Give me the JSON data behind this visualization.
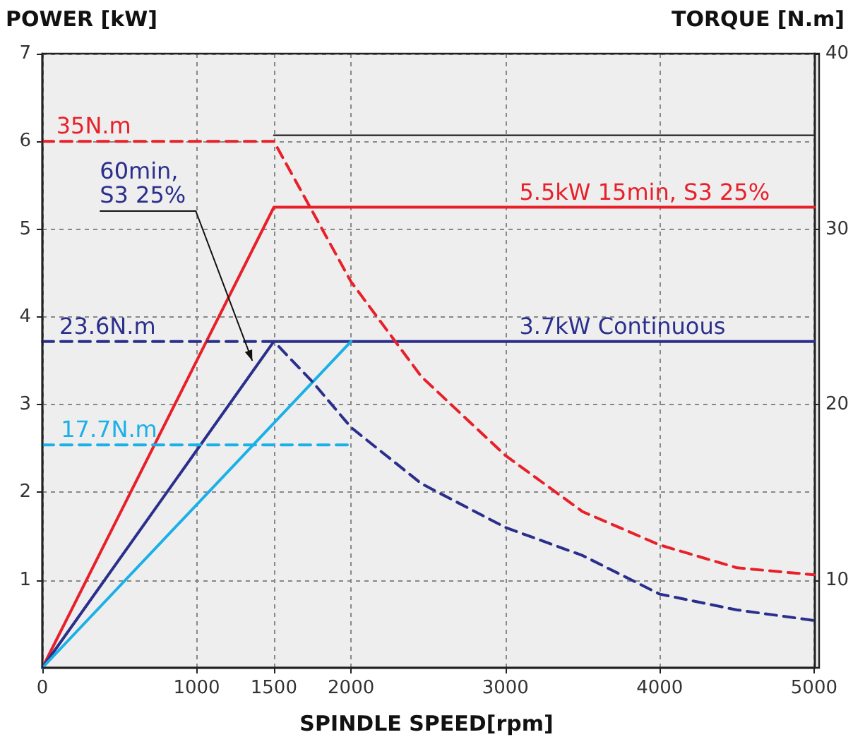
{
  "chart_data": {
    "type": "line",
    "xlabel": "SPINDLE SPEED[rpm]",
    "ylabel": "POWER [kW]",
    "y2label": "TORQUE [N.m]",
    "xlim": [
      0,
      5000
    ],
    "xticks": [
      0,
      1000,
      1500,
      2000,
      3000,
      4000,
      5000
    ],
    "ylim": [
      0,
      7
    ],
    "yticks": [
      1,
      2,
      3,
      4,
      5,
      6,
      7
    ],
    "y2lim": [
      5,
      40
    ],
    "y2ticks": [
      10,
      20,
      30,
      40
    ],
    "grid": true,
    "marker": "none",
    "series": [
      {
        "name": "5.5kW 15min, S3 25%",
        "color": "#e8202a",
        "x": [
          0,
          1500,
          5000
        ],
        "values": [
          0,
          5.25,
          5.25
        ],
        "line_style": "solid"
      },
      {
        "name": "3.7kW Continuous",
        "color": "#2b2f8c",
        "x": [
          0,
          1500,
          5000
        ],
        "values": [
          0,
          3.72,
          3.72
        ],
        "line_style": "solid"
      },
      {
        "color": "#1ab0e8",
        "x": [
          0,
          2000
        ],
        "values": [
          0,
          3.72
        ],
        "line_style": "solid"
      },
      {
        "name": "35N.m",
        "color": "#e8202a",
        "axis": "y2",
        "x": [
          0,
          1500,
          2000,
          2455,
          3000,
          3500,
          4000,
          4500,
          5000
        ],
        "values": [
          35,
          35,
          27,
          21.6,
          17.1,
          13.9,
          12,
          10.7,
          10.3
        ],
        "line_style": "dashed"
      },
      {
        "name": "23.6N.m",
        "color": "#2b2f8c",
        "axis": "y2",
        "x": [
          0,
          1500,
          1750,
          2000,
          2455,
          3000,
          3500,
          4000,
          4500,
          5000
        ],
        "values": [
          23.6,
          23.6,
          21.3,
          18.7,
          15.5,
          13,
          11.4,
          9.2,
          8.3,
          7.7
        ],
        "line_style": "dashed"
      },
      {
        "name": "17.7N.m",
        "color": "#1ab0e8",
        "axis": "y2",
        "x": [
          0,
          2000
        ],
        "values": [
          17.7,
          17.7
        ],
        "line_style": "dashed"
      },
      {
        "color": "#222222",
        "x": [
          1500,
          5000
        ],
        "values": [
          6.07,
          6.07
        ],
        "line_style": "solid"
      }
    ],
    "annotations": [
      {
        "text": "60min,\nS3 25%",
        "x": 1360,
        "y": 3.5
      }
    ]
  }
}
